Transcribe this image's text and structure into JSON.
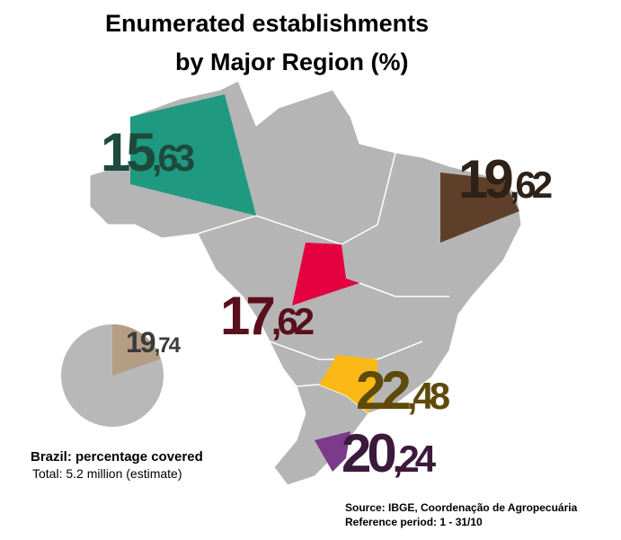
{
  "title": [
    "Enumerated establishments",
    "by Major Region (%)"
  ],
  "regions": [
    {
      "value": 15.63,
      "label": "15,63",
      "color": "#1f9a80",
      "label_color": "#1e4a3e"
    },
    {
      "value": 19.62,
      "label": "19,62",
      "color": "#5e402a",
      "label_color": "#2e2117"
    },
    {
      "value": 17.62,
      "label": "17,62",
      "color": "#e5003f",
      "label_color": "#5a0f1c"
    },
    {
      "value": 22.48,
      "label": "22,48",
      "color": "#fbb917",
      "label_color": "#5e4a0a"
    },
    {
      "value": 20.24,
      "label": "20,24",
      "color": "#7b3a8a",
      "label_color": "#3b1a3c"
    }
  ],
  "brazil": {
    "value": 19.74,
    "label": "19,74",
    "color": "#b49c85",
    "label_color": "#3a3a3a",
    "caption": "Brazil: percentage covered",
    "total": "Total: 5.2 million (estimate)"
  },
  "source": [
    "Source: IBGE, Coordenação de Agropecuária",
    "Reference period: 1 - 31/10"
  ]
}
